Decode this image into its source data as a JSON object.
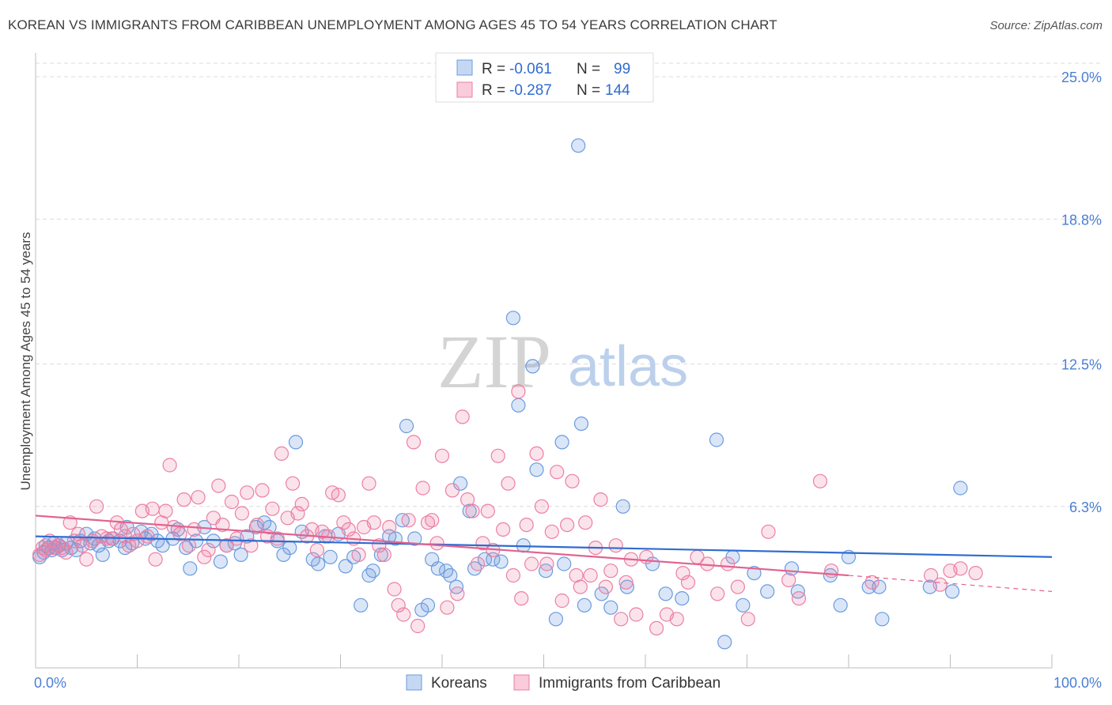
{
  "title": "KOREAN VS IMMIGRANTS FROM CARIBBEAN UNEMPLOYMENT AMONG AGES 45 TO 54 YEARS CORRELATION CHART",
  "source": "Source: ZipAtlas.com",
  "watermark": {
    "zip": "ZIP",
    "atlas": "atlas"
  },
  "legend": {
    "r_label": "R =",
    "n_label": "N =",
    "rows": [
      {
        "r": "-0.061",
        "n": "99",
        "color": "#6a9be0"
      },
      {
        "r": "-0.287",
        "n": "144",
        "color": "#ec7fa3"
      }
    ]
  },
  "chart_data": {
    "type": "scatter",
    "ylabel": "Unemployment Among Ages 45 to 54 years",
    "xlabel": "",
    "xlim": [
      0,
      100
    ],
    "ylim": [
      0,
      25.0
    ],
    "x_tick_labels": [
      "0.0%",
      "100.0%"
    ],
    "y_ticks": [
      6.3,
      12.5,
      18.8,
      25.0
    ],
    "y_tick_labels": [
      "6.3%",
      "12.5%",
      "18.8%",
      "25.0%"
    ],
    "grid": true,
    "legend_position": "top-center",
    "series": [
      {
        "name": "Koreans",
        "color": "#6a9be0",
        "line_color": "#2f6cd0",
        "trend": {
          "x": [
            0,
            100
          ],
          "y": [
            5.0,
            4.1
          ]
        },
        "points": [
          [
            0.4,
            4.1
          ],
          [
            0.8,
            4.3
          ],
          [
            1.0,
            4.6
          ],
          [
            1.3,
            4.5
          ],
          [
            1.6,
            4.4
          ],
          [
            1.8,
            4.7
          ],
          [
            2.0,
            4.5
          ],
          [
            2.3,
            4.6
          ],
          [
            2.6,
            4.4
          ],
          [
            3.0,
            4.7
          ],
          [
            3.5,
            4.5
          ],
          [
            4.0,
            4.4
          ],
          [
            4.4,
            4.8
          ],
          [
            5.0,
            5.1
          ],
          [
            5.4,
            4.7
          ],
          [
            5.8,
            4.9
          ],
          [
            6.2,
            4.6
          ],
          [
            6.6,
            4.2
          ],
          [
            7.2,
            4.8
          ],
          [
            7.6,
            4.9
          ],
          [
            8.3,
            4.8
          ],
          [
            8.8,
            4.5
          ],
          [
            9.0,
            5.4
          ],
          [
            9.5,
            4.7
          ],
          [
            10.4,
            5.2
          ],
          [
            10.8,
            4.9
          ],
          [
            11.4,
            5.1
          ],
          [
            12.0,
            4.8
          ],
          [
            12.5,
            4.6
          ],
          [
            13.5,
            4.9
          ],
          [
            14.0,
            5.3
          ],
          [
            14.8,
            4.5
          ],
          [
            15.2,
            3.6
          ],
          [
            15.8,
            4.8
          ],
          [
            16.6,
            5.4
          ],
          [
            17.5,
            4.8
          ],
          [
            18.2,
            3.9
          ],
          [
            18.8,
            4.6
          ],
          [
            19.6,
            4.7
          ],
          [
            20.2,
            4.2
          ],
          [
            20.8,
            5.0
          ],
          [
            21.7,
            5.4
          ],
          [
            22.5,
            5.6
          ],
          [
            23.0,
            5.4
          ],
          [
            23.8,
            4.8
          ],
          [
            24.4,
            4.2
          ],
          [
            25.0,
            4.5
          ],
          [
            25.6,
            9.1
          ],
          [
            26.2,
            5.2
          ],
          [
            27.3,
            4.0
          ],
          [
            27.8,
            3.8
          ],
          [
            28.5,
            5.0
          ],
          [
            29.0,
            4.1
          ],
          [
            29.8,
            5.1
          ],
          [
            30.5,
            3.7
          ],
          [
            31.3,
            4.1
          ],
          [
            32.0,
            2.0
          ],
          [
            32.8,
            3.3
          ],
          [
            33.2,
            3.5
          ],
          [
            34.0,
            4.2
          ],
          [
            34.8,
            5.0
          ],
          [
            35.4,
            4.9
          ],
          [
            36.1,
            5.7
          ],
          [
            36.5,
            9.8
          ],
          [
            37.3,
            4.9
          ],
          [
            38.0,
            1.8
          ],
          [
            38.6,
            2.0
          ],
          [
            39.0,
            4.0
          ],
          [
            39.6,
            3.6
          ],
          [
            40.4,
            3.5
          ],
          [
            40.8,
            3.3
          ],
          [
            41.4,
            2.8
          ],
          [
            41.8,
            7.3
          ],
          [
            42.7,
            6.1
          ],
          [
            43.2,
            3.6
          ],
          [
            44.2,
            4.0
          ],
          [
            45.0,
            4.0
          ],
          [
            45.8,
            3.9
          ],
          [
            47.0,
            14.5
          ],
          [
            47.5,
            10.7
          ],
          [
            48.0,
            4.6
          ],
          [
            48.9,
            12.4
          ],
          [
            49.3,
            7.9
          ],
          [
            50.2,
            3.5
          ],
          [
            51.2,
            1.4
          ],
          [
            51.8,
            9.1
          ],
          [
            52.0,
            3.8
          ],
          [
            53.4,
            22.0
          ],
          [
            53.7,
            9.9
          ],
          [
            54.0,
            2.0
          ],
          [
            55.7,
            2.5
          ],
          [
            56.6,
            1.9
          ],
          [
            57.8,
            6.3
          ],
          [
            58.2,
            2.8
          ],
          [
            60.7,
            3.8
          ],
          [
            62.0,
            2.5
          ],
          [
            63.6,
            2.3
          ],
          [
            67.0,
            9.2
          ],
          [
            67.8,
            0.4
          ],
          [
            68.6,
            4.1
          ],
          [
            69.6,
            2.0
          ],
          [
            70.7,
            3.4
          ],
          [
            72.0,
            2.6
          ],
          [
            74.4,
            3.6
          ],
          [
            75.0,
            2.6
          ],
          [
            78.2,
            3.3
          ],
          [
            79.2,
            2.0
          ],
          [
            80.0,
            4.1
          ],
          [
            82.0,
            2.8
          ],
          [
            83.0,
            2.8
          ],
          [
            83.3,
            1.4
          ],
          [
            88.0,
            2.8
          ],
          [
            90.2,
            2.6
          ],
          [
            91.0,
            7.1
          ]
        ]
      },
      {
        "name": "Immigrants from Caribbean",
        "color": "#ec7fa3",
        "line_color": "#e2628f",
        "trend": {
          "x": [
            0,
            80
          ],
          "y": [
            5.9,
            3.3
          ]
        },
        "trend_extension": {
          "x": [
            80,
            100
          ],
          "y": [
            3.3,
            2.6
          ]
        },
        "points": [
          [
            0.4,
            4.2
          ],
          [
            0.7,
            4.5
          ],
          [
            1.0,
            4.4
          ],
          [
            1.4,
            4.8
          ],
          [
            1.8,
            4.5
          ],
          [
            2.2,
            4.6
          ],
          [
            2.6,
            4.5
          ],
          [
            3.0,
            4.3
          ],
          [
            3.4,
            5.6
          ],
          [
            3.8,
            4.8
          ],
          [
            4.2,
            5.1
          ],
          [
            4.6,
            4.6
          ],
          [
            5.0,
            4.0
          ],
          [
            5.6,
            4.8
          ],
          [
            6.0,
            6.3
          ],
          [
            6.5,
            5.0
          ],
          [
            7.0,
            4.9
          ],
          [
            7.5,
            4.9
          ],
          [
            8.0,
            5.6
          ],
          [
            8.4,
            5.3
          ],
          [
            8.8,
            5.0
          ],
          [
            9.2,
            4.6
          ],
          [
            9.6,
            5.1
          ],
          [
            10.0,
            4.8
          ],
          [
            10.5,
            6.1
          ],
          [
            11.0,
            5.0
          ],
          [
            11.5,
            6.2
          ],
          [
            11.8,
            4.0
          ],
          [
            12.4,
            5.6
          ],
          [
            12.8,
            6.1
          ],
          [
            13.2,
            8.1
          ],
          [
            13.6,
            5.4
          ],
          [
            14.2,
            5.1
          ],
          [
            14.6,
            6.6
          ],
          [
            15.1,
            4.6
          ],
          [
            15.6,
            5.3
          ],
          [
            16.0,
            6.7
          ],
          [
            16.6,
            4.1
          ],
          [
            17.0,
            4.4
          ],
          [
            17.5,
            5.8
          ],
          [
            18.0,
            7.2
          ],
          [
            18.4,
            5.5
          ],
          [
            18.8,
            4.6
          ],
          [
            19.3,
            6.5
          ],
          [
            19.8,
            4.9
          ],
          [
            20.3,
            6.0
          ],
          [
            20.8,
            6.9
          ],
          [
            21.2,
            4.6
          ],
          [
            21.8,
            5.5
          ],
          [
            22.3,
            7.0
          ],
          [
            22.8,
            5.0
          ],
          [
            23.3,
            6.2
          ],
          [
            23.8,
            4.9
          ],
          [
            24.2,
            8.6
          ],
          [
            24.8,
            5.8
          ],
          [
            25.3,
            7.3
          ],
          [
            25.8,
            6.0
          ],
          [
            26.2,
            6.4
          ],
          [
            26.7,
            5.0
          ],
          [
            27.2,
            5.3
          ],
          [
            27.7,
            4.4
          ],
          [
            28.2,
            5.2
          ],
          [
            28.8,
            5.0
          ],
          [
            29.2,
            6.9
          ],
          [
            29.8,
            6.8
          ],
          [
            30.3,
            5.6
          ],
          [
            30.8,
            5.3
          ],
          [
            31.3,
            4.9
          ],
          [
            31.8,
            4.2
          ],
          [
            32.3,
            5.4
          ],
          [
            32.8,
            7.3
          ],
          [
            33.3,
            5.6
          ],
          [
            33.8,
            4.6
          ],
          [
            34.3,
            4.2
          ],
          [
            34.8,
            5.4
          ],
          [
            35.3,
            2.7
          ],
          [
            35.7,
            2.0
          ],
          [
            36.2,
            1.6
          ],
          [
            36.7,
            5.7
          ],
          [
            37.2,
            9.1
          ],
          [
            37.6,
            1.1
          ],
          [
            38.1,
            7.1
          ],
          [
            38.6,
            5.6
          ],
          [
            39.0,
            5.7
          ],
          [
            39.5,
            4.7
          ],
          [
            40.0,
            8.5
          ],
          [
            40.5,
            1.9
          ],
          [
            41.0,
            7.0
          ],
          [
            41.5,
            2.5
          ],
          [
            42.0,
            10.2
          ],
          [
            42.5,
            6.6
          ],
          [
            43.0,
            6.1
          ],
          [
            43.5,
            3.8
          ],
          [
            44.0,
            4.7
          ],
          [
            44.5,
            6.1
          ],
          [
            45.0,
            4.4
          ],
          [
            45.5,
            8.5
          ],
          [
            46.0,
            5.3
          ],
          [
            46.5,
            7.3
          ],
          [
            47.0,
            3.3
          ],
          [
            47.5,
            11.3
          ],
          [
            47.8,
            2.3
          ],
          [
            48.3,
            5.5
          ],
          [
            48.8,
            3.8
          ],
          [
            49.3,
            8.6
          ],
          [
            49.8,
            6.3
          ],
          [
            50.3,
            3.8
          ],
          [
            50.8,
            5.2
          ],
          [
            51.3,
            7.8
          ],
          [
            51.8,
            2.2
          ],
          [
            52.3,
            5.5
          ],
          [
            52.8,
            7.4
          ],
          [
            53.2,
            3.3
          ],
          [
            53.6,
            2.8
          ],
          [
            54.1,
            5.6
          ],
          [
            54.6,
            3.3
          ],
          [
            55.1,
            4.5
          ],
          [
            55.6,
            6.6
          ],
          [
            56.1,
            2.8
          ],
          [
            56.6,
            3.5
          ],
          [
            57.1,
            4.6
          ],
          [
            57.6,
            1.4
          ],
          [
            58.1,
            3.0
          ],
          [
            58.6,
            4.0
          ],
          [
            59.1,
            1.6
          ],
          [
            60.1,
            4.1
          ],
          [
            61.1,
            1.0
          ],
          [
            62.1,
            1.6
          ],
          [
            63.1,
            1.4
          ],
          [
            63.7,
            3.4
          ],
          [
            64.2,
            3.0
          ],
          [
            65.1,
            4.1
          ],
          [
            66.1,
            3.8
          ],
          [
            67.1,
            2.5
          ],
          [
            68.1,
            3.8
          ],
          [
            69.1,
            2.8
          ],
          [
            70.1,
            1.4
          ],
          [
            72.1,
            5.2
          ],
          [
            74.1,
            3.1
          ],
          [
            75.1,
            2.3
          ],
          [
            77.2,
            7.4
          ],
          [
            78.3,
            3.5
          ],
          [
            82.3,
            3.0
          ],
          [
            88.1,
            3.3
          ],
          [
            89.0,
            2.9
          ],
          [
            90.0,
            3.5
          ],
          [
            91.0,
            3.6
          ],
          [
            92.5,
            3.4
          ]
        ]
      }
    ]
  }
}
